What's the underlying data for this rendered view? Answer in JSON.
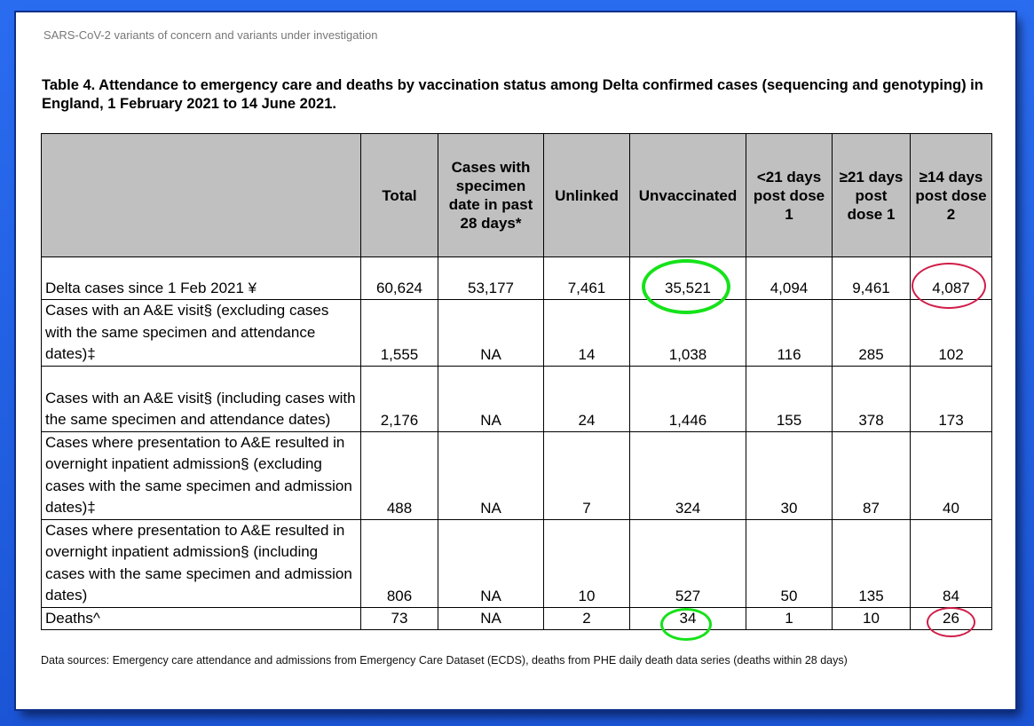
{
  "page": {
    "header": "SARS-CoV-2 variants of concern and variants under investigation",
    "caption": "Table 4. Attendance to emergency care and deaths by vaccination status among Delta confirmed cases (sequencing and genotyping) in England, 1 February 2021 to 14 June 2021.",
    "footer": "Data sources: Emergency care attendance and admissions from Emergency Care Dataset (ECDS), deaths from PHE daily death data series (deaths within 28 days)"
  },
  "table": {
    "headers": [
      "",
      "Total",
      "Cases with specimen date in past 28 days*",
      "Unlinked",
      "Unvaccinated",
      "<21 days post dose 1",
      "≥21 days post dose 1",
      "≥14 days post dose 2"
    ],
    "rows": [
      [
        "Delta cases since 1 Feb 2021 ¥",
        "60,624",
        "53,177",
        "7,461",
        "35,521",
        "4,094",
        "9,461",
        "4,087"
      ],
      [
        "Cases with an A&E visit§ (excluding cases with the same specimen and attendance dates)‡",
        "1,555",
        "NA",
        "14",
        "1,038",
        "116",
        "285",
        "102"
      ],
      [
        "Cases with an A&E visit§ (including cases with the same specimen and attendance dates)",
        "2,176",
        "NA",
        "24",
        "1,446",
        "155",
        "378",
        "173"
      ],
      [
        "Cases where presentation to A&E resulted in overnight inpatient admission§ (excluding cases with the same specimen and admission dates)‡",
        "488",
        "NA",
        "7",
        "324",
        "30",
        "87",
        "40"
      ],
      [
        "Cases where presentation to A&E resulted in overnight inpatient admission§ (including cases with the same specimen and admission dates)",
        "806",
        "NA",
        "10",
        "527",
        "50",
        "135",
        "84"
      ],
      [
        "Deaths^",
        "73",
        "NA",
        "2",
        "34",
        "1",
        "10",
        "26"
      ]
    ]
  },
  "annotations": {
    "green_color": "#16e21a",
    "red_color": "#d01f4a"
  }
}
